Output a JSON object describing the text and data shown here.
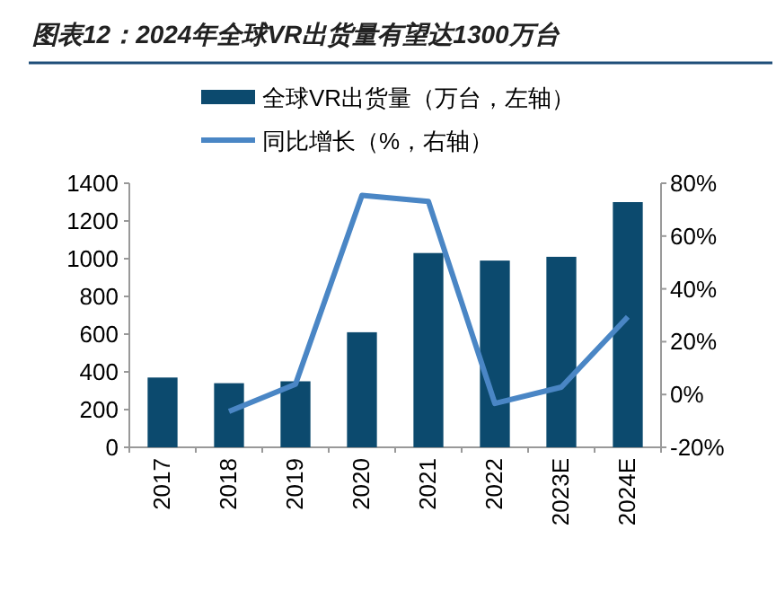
{
  "chart_data": {
    "type": "bar",
    "title": "图表12：2024年全球VR出货量有望达1300万台",
    "categories": [
      "2017",
      "2018",
      "2019",
      "2020",
      "2021",
      "2022",
      "2023E",
      "2024E"
    ],
    "series": [
      {
        "name": "全球VR出货量（万台，左轴）",
        "color": "#0c4a6e",
        "values": [
          370,
          340,
          350,
          610,
          1030,
          990,
          1010,
          1300
        ]
      },
      {
        "name": "同比增长（%，右轴）",
        "type": "line",
        "axis": "y2",
        "color": "#4a86c5",
        "values": [
          null,
          -6.4,
          3.9,
          75.4,
          73.1,
          -3.4,
          2.8,
          29.4
        ]
      }
    ],
    "ylim": [
      0,
      1400
    ],
    "yticks": [
      0,
      200,
      400,
      600,
      800,
      1000,
      1200,
      1400
    ],
    "y2lim": [
      -20,
      80
    ],
    "y2ticks": [
      {
        "value": -20,
        "label": "-20%"
      },
      {
        "value": 0,
        "label": "0%"
      },
      {
        "value": 20,
        "label": "20%"
      },
      {
        "value": 40,
        "label": "40%"
      },
      {
        "value": 60,
        "label": "60%"
      },
      {
        "value": 80,
        "label": "80%"
      }
    ],
    "legend": "top",
    "grid": false,
    "marker": "none",
    "line_style": "solid"
  }
}
